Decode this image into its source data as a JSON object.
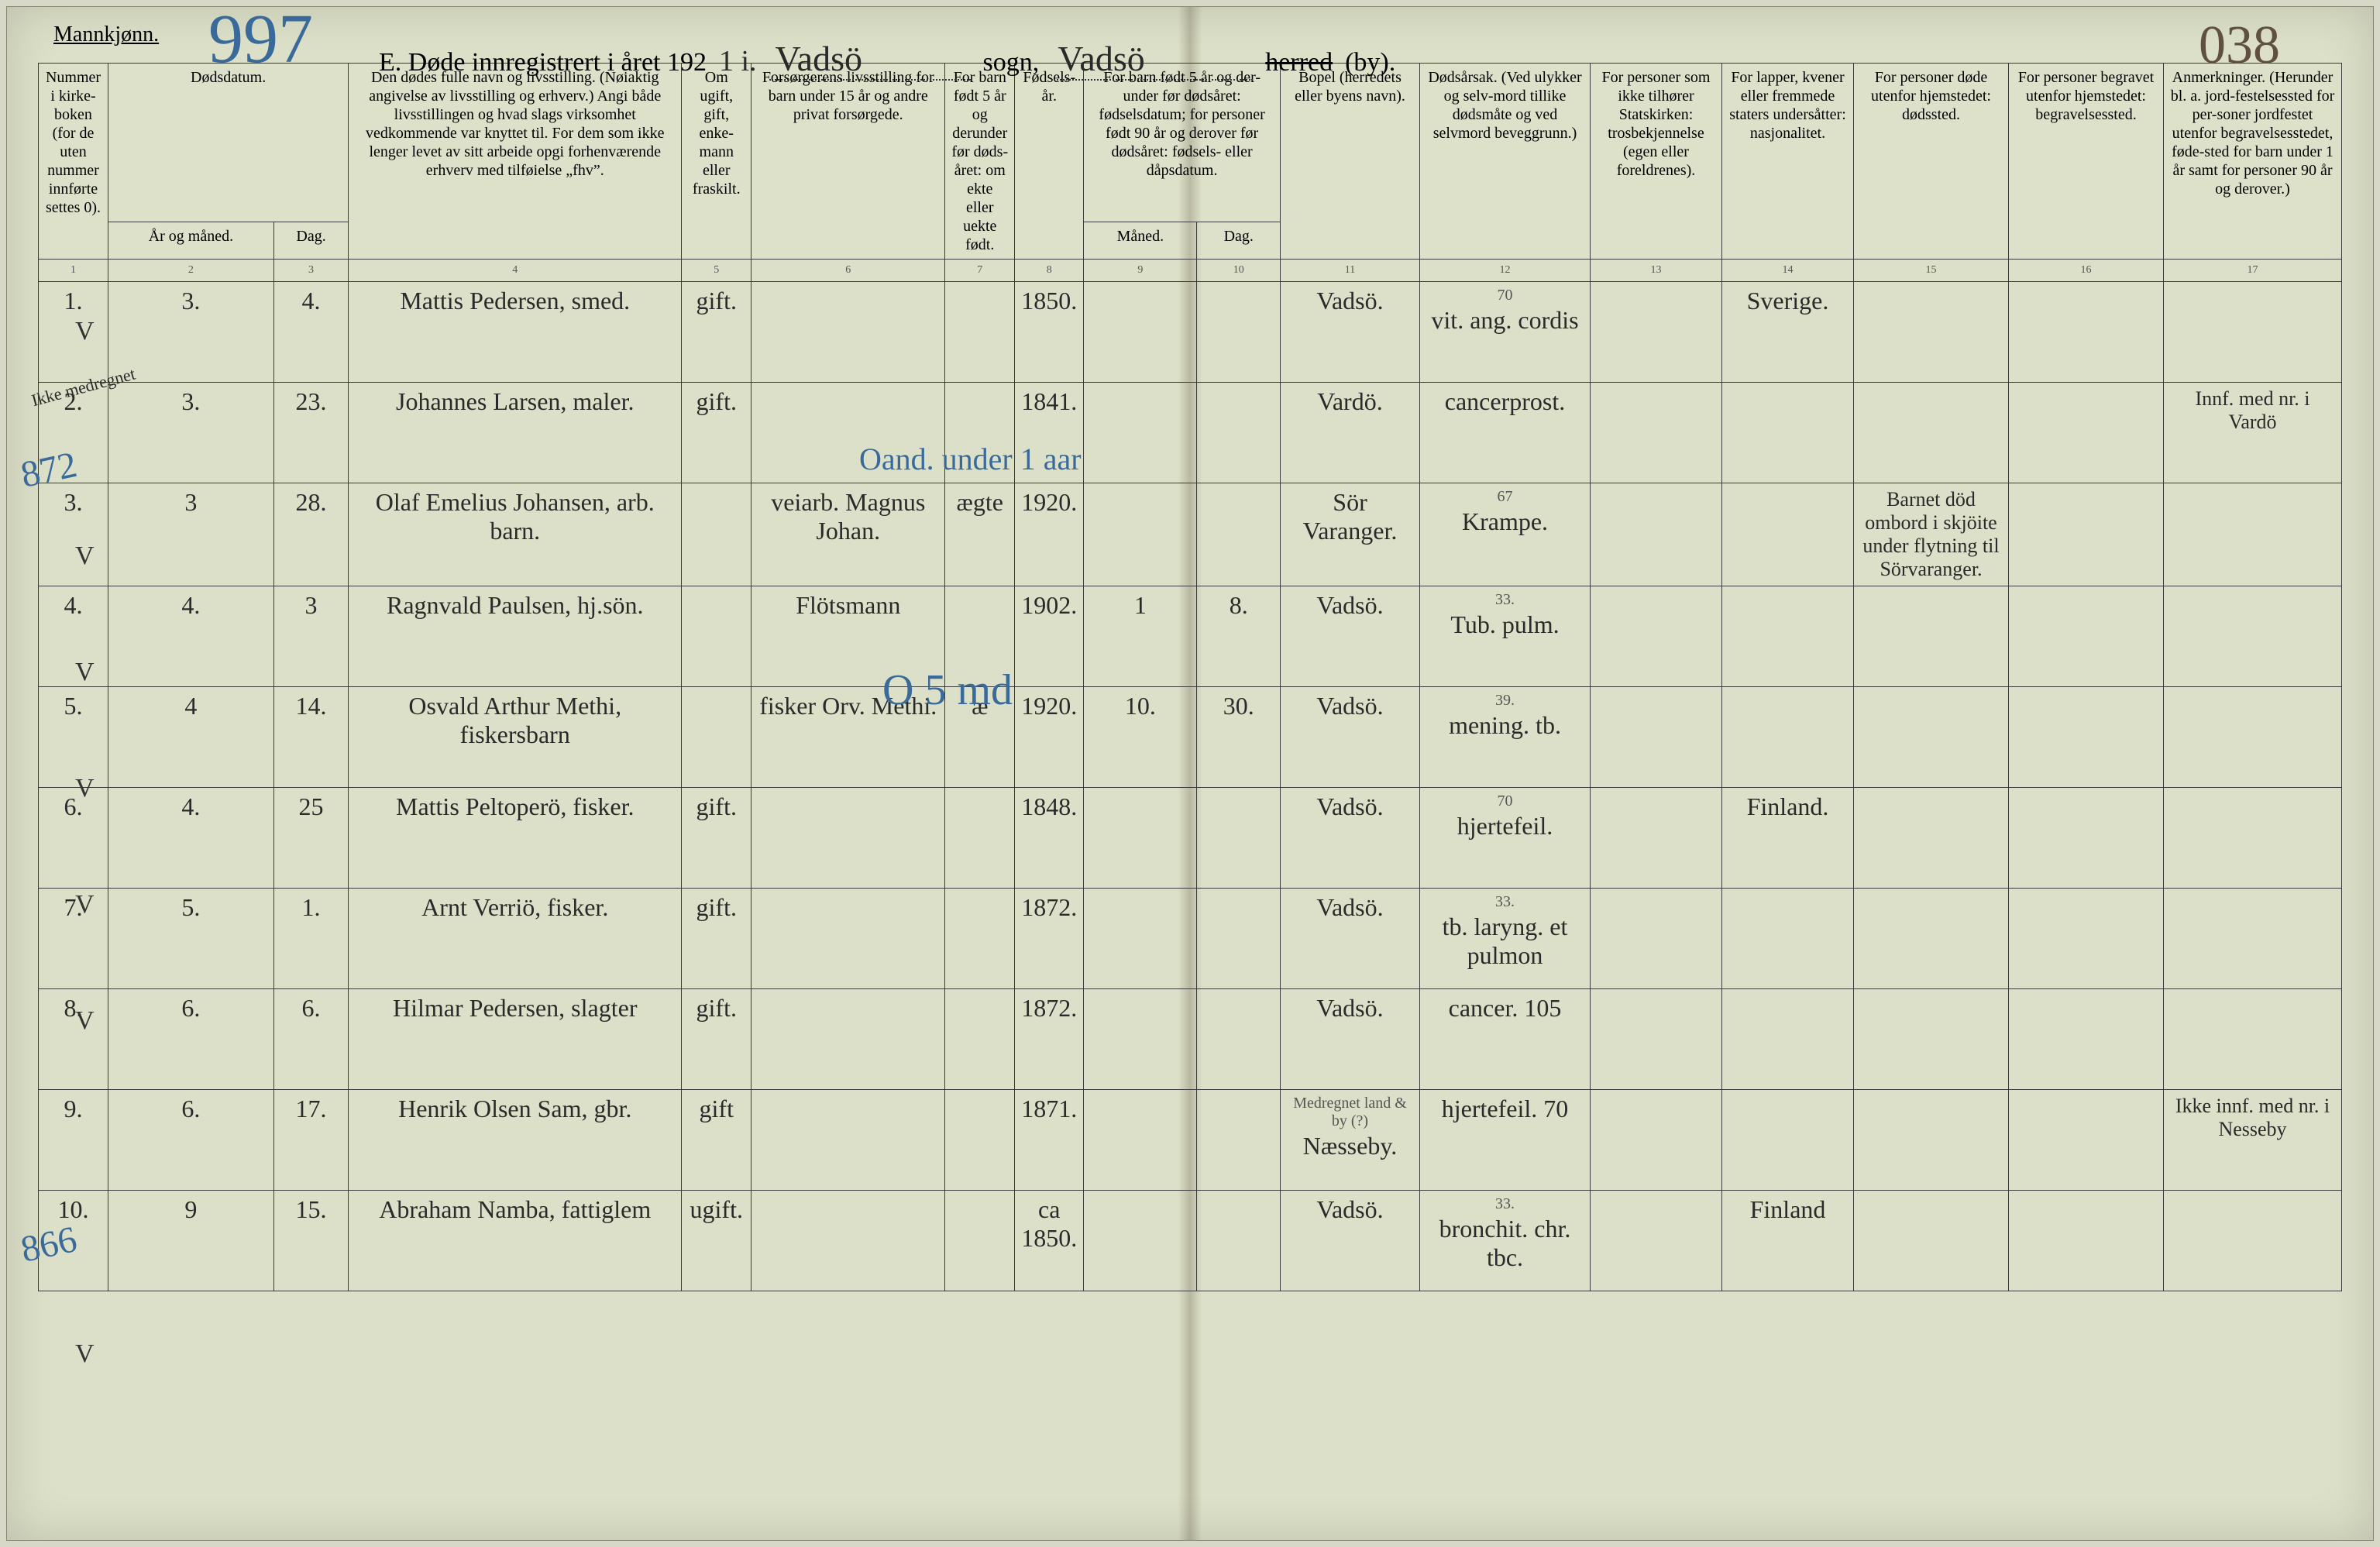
{
  "page": {
    "mannkjonn": "Mannkjønn.",
    "handwritten_left": "997",
    "handwritten_right": "038",
    "title_prefix": "E.  Døde innregistrert i året 192",
    "title_year_suffix": "1 i.",
    "sogn_name": "Vadsö",
    "sogn_label": "sogn,",
    "herred_name": "Vadsö",
    "herred_struck": "herred",
    "by_label": "(by)."
  },
  "headers": {
    "c1": "Nummer i kirke-boken (for de uten nummer innførte settes 0).",
    "c2_top": "Dødsdatum.",
    "c2a": "År og måned.",
    "c2b": "Dag.",
    "c4": "Den dødes fulle navn og livsstilling.\n(Nøiaktig angivelse av livsstilling og erhverv.) Angi både livsstillingen og hvad slags virksomhet vedkommende var knyttet til. For dem som ikke lenger levet av sitt arbeide opgi forhenværende erhverv med tilføielse „fhv”.",
    "c5": "Om ugift, gift, enke-mann eller fraskilt.",
    "c6": "Forsørgerens livsstilling\nfor barn under 15 år og andre privat forsørgede.",
    "c7": "For barn født 5 år og derunder før døds-året: om ekte eller uekte født.",
    "c8": "Fødsels-år.",
    "c9_top": "For barn født 5 år og der-under før dødsåret: fødselsdatum; for personer født 90 år og derover før dødsåret: fødsels- eller dåpsdatum.",
    "c9a": "Måned.",
    "c9b": "Dag.",
    "c11": "Bopel\n(herredets eller byens navn).",
    "c12": "Dødsårsak.\n(Ved ulykker og selv-mord tillike dødsmåte og ved selvmord beveggrunn.)",
    "c13": "For personer som ikke tilhører Statskirken: trosbekjennelse (egen eller foreldrenes).",
    "c14": "For lapper, kvener eller fremmede staters undersåtter: nasjonalitet.",
    "c15": "For personer døde utenfor hjemstedet: dødssted.",
    "c16": "For personer begravet utenfor hjemstedet: begravelsessted.",
    "c17": "Anmerkninger.\n(Herunder bl. a. jord-festelsessted for per-soner jordfestet utenfor begravelsesstedet, føde-sted for barn under 1 år samt for personer 90 år og derover.)",
    "colnums": [
      "1",
      "2",
      "3",
      "4",
      "5",
      "6",
      "7",
      "8",
      "9",
      "10",
      "11",
      "12",
      "13",
      "14",
      "15",
      "16",
      "17"
    ]
  },
  "margin_notes": {
    "n872": "872",
    "n866": "866",
    "ikke_medregnet": "Ikke medregnet"
  },
  "blue_annot": {
    "row3": "Oand. under 1 aar",
    "row5": "O 5 md"
  },
  "rows": [
    {
      "num": "1.",
      "mon": "3.",
      "day": "4.",
      "name": "Mattis Pedersen, smed.",
      "civil": "gift.",
      "provider": "",
      "ekte": "",
      "birthyear": "1850.",
      "bm": "",
      "bd": "",
      "bopel": "Vadsö.",
      "cause_above": "70",
      "cause": "vit. ang. cordis",
      "tros": "",
      "nasj": "Sverige.",
      "dodssted": "",
      "begrav": "",
      "anm": ""
    },
    {
      "num": "2.",
      "mon": "3.",
      "day": "23.",
      "name": "Johannes Larsen, maler.",
      "civil": "gift.",
      "provider": "",
      "ekte": "",
      "birthyear": "1841.",
      "bm": "",
      "bd": "",
      "bopel": "Vardö.",
      "cause_above": "",
      "cause": "cancerprost.",
      "tros": "",
      "nasj": "",
      "dodssted": "",
      "begrav": "",
      "anm": "Innf. med nr. i Vardö"
    },
    {
      "num": "3.",
      "mon": "3",
      "day": "28.",
      "name": "Olaf Emelius Johansen, arb. barn.",
      "civil": "",
      "provider": "veiarb. Magnus Johan.",
      "ekte": "ægte",
      "birthyear": "1920.",
      "bm": "",
      "bd": "",
      "bopel": "Sör Varanger.",
      "cause_above": "67",
      "cause": "Krampe.",
      "tros": "",
      "nasj": "",
      "dodssted": "Barnet död ombord i skjöite under flytning til Sörvaranger.",
      "begrav": "",
      "anm": ""
    },
    {
      "num": "4.",
      "mon": "4.",
      "day": "3",
      "name": "Ragnvald Paulsen, hj.sön.",
      "civil": "",
      "provider": "Flötsmann",
      "ekte": "",
      "birthyear": "1902.",
      "bm": "1",
      "bd": "8.",
      "bopel": "Vadsö.",
      "cause_above": "33.",
      "cause": "Tub. pulm.",
      "tros": "",
      "nasj": "",
      "dodssted": "",
      "begrav": "",
      "anm": ""
    },
    {
      "num": "5.",
      "mon": "4",
      "day": "14.",
      "name": "Osvald Arthur Methi, fiskersbarn",
      "civil": "",
      "provider": "fisker Orv. Methi.",
      "ekte": "æ",
      "birthyear": "1920.",
      "bm": "10.",
      "bd": "30.",
      "bopel": "Vadsö.",
      "cause_above": "39.",
      "cause": "mening. tb.",
      "tros": "",
      "nasj": "",
      "dodssted": "",
      "begrav": "",
      "anm": ""
    },
    {
      "num": "6.",
      "mon": "4.",
      "day": "25",
      "name": "Mattis Peltoperö, fisker.",
      "civil": "gift.",
      "provider": "",
      "ekte": "",
      "birthyear": "1848.",
      "bm": "",
      "bd": "",
      "bopel": "Vadsö.",
      "cause_above": "70",
      "cause": "hjertefeil.",
      "tros": "",
      "nasj": "Finland.",
      "dodssted": "",
      "begrav": "",
      "anm": ""
    },
    {
      "num": "7.",
      "mon": "5.",
      "day": "1.",
      "name": "Arnt Verriö, fisker.",
      "civil": "gift.",
      "provider": "",
      "ekte": "",
      "birthyear": "1872.",
      "bm": "",
      "bd": "",
      "bopel": "Vadsö.",
      "cause_above": "33.",
      "cause": "tb. laryng. et pulmon",
      "tros": "",
      "nasj": "",
      "dodssted": "",
      "begrav": "",
      "anm": ""
    },
    {
      "num": "8.",
      "mon": "6.",
      "day": "6.",
      "name": "Hilmar Pedersen, slagter",
      "civil": "gift.",
      "provider": "",
      "ekte": "",
      "birthyear": "1872.",
      "bm": "",
      "bd": "",
      "bopel": "Vadsö.",
      "cause_above": "",
      "cause": "cancer. 105",
      "tros": "",
      "nasj": "",
      "dodssted": "",
      "begrav": "",
      "anm": ""
    },
    {
      "num": "9.",
      "mon": "6.",
      "day": "17.",
      "name": "Henrik Olsen Sam, gbr.",
      "civil": "gift",
      "provider": "",
      "ekte": "",
      "birthyear": "1871.",
      "bm": "",
      "bd": "",
      "bopel_above": "Medregnet land & by (?)",
      "bopel": "Næsseby.",
      "cause_above": "",
      "cause": "hjertefeil. 70",
      "tros": "",
      "nasj": "",
      "dodssted": "",
      "begrav": "",
      "anm": "Ikke innf. med nr. i Nesseby"
    },
    {
      "num": "10.",
      "mon": "9",
      "day": "15.",
      "name": "Abraham Namba, fattiglem",
      "civil": "ugift.",
      "provider": "",
      "ekte": "",
      "birthyear": "ca 1850.",
      "bm": "",
      "bd": "",
      "bopel": "Vadsö.",
      "cause_above": "33.",
      "cause": "bronchit. chr. tbc.",
      "tros": "",
      "nasj": "Finland",
      "dodssted": "",
      "begrav": "",
      "anm": ""
    }
  ]
}
